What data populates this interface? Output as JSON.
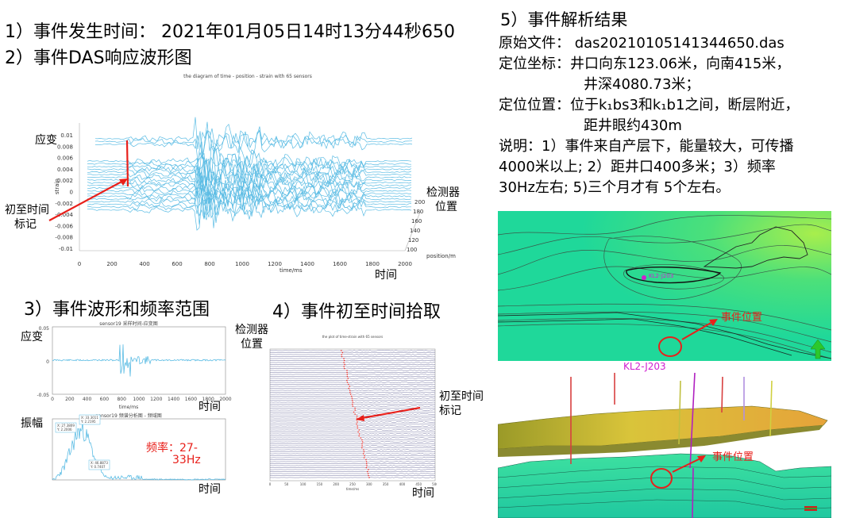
{
  "left": {
    "title1": "1）事件发生时间： 2021年01月05日14时13分44秒650",
    "title2": "2）事件DAS响应波形图",
    "main_plot": {
      "title": "the diagram of time - position - strain with 65 sensors",
      "ylabel": "strain",
      "xlabel": "time/ms",
      "zlabel": "position/m",
      "yticks": [
        "0.01",
        "0.008",
        "0.006",
        "0.004",
        "0.002",
        "0",
        "-0.002",
        "-0.004",
        "-0.006",
        "-0.008",
        "-0.01"
      ],
      "xticks": [
        "0",
        "200",
        "400",
        "600",
        "800",
        "1000",
        "1200",
        "1400",
        "1600",
        "1800",
        "2000"
      ],
      "zticks": [
        "200",
        "180",
        "160",
        "140",
        "120",
        "100"
      ],
      "ann_strain": "应变",
      "ann_first_arrival_1": "初至时间",
      "ann_first_arrival_2": "标记",
      "ann_detector_1": "检测器",
      "ann_detector_2": "位置",
      "ann_time": "时间"
    },
    "title3": "3）事件波形和频率范围",
    "title4": "4）事件初至时间拾取",
    "waveform": {
      "title": "sensor19 采样时间-应变图",
      "ylabel": "应变",
      "xlabel": "time/ms",
      "yticks": [
        "0.05",
        "0",
        "-0.05"
      ],
      "xticks": [
        "0",
        "200",
        "400",
        "600",
        "800",
        "1000",
        "1200",
        "1400",
        "1600",
        "1800",
        "2000"
      ],
      "ann_time": "时间"
    },
    "spectrum": {
      "title": "sensor19 频谱分析图 - 频域图",
      "ylabel": "振幅",
      "xlabel": "f(q) Hz",
      "freq_label_1": "频率：27-",
      "freq_label_2": "33Hz",
      "ann_time": "时间",
      "callouts": [
        "X: 27.3809\nY: 2.2006",
        "X: 33.3011\nY: 2.2195",
        "X: 46.8873\nY: 0.7407"
      ]
    },
    "firstpick": {
      "title": "the plot of time-strain with 65 sensors",
      "ylabel_1": "检测器",
      "ylabel_2": "位置",
      "xlabel": "time/ms",
      "ann_1": "初至时间",
      "ann_2": "标记",
      "ann_time": "时间",
      "xticks": [
        "0",
        "50",
        "100",
        "150",
        "200",
        "250",
        "300",
        "350",
        "400",
        "450",
        "500"
      ]
    }
  },
  "right": {
    "heading": "5）事件解析结果",
    "line1": "原始文件： das20210105141344650.das",
    "line2": "定位坐标：井口向东123.06米，向南415米，",
    "line3": "井深4080.73米；",
    "line4": "定位位置：位于k₁bs3和k₁b1之间，断层附近，",
    "line5": "距井眼约430m",
    "line6": "说明：1）事件来自产层下，能量较大，可传播",
    "line7": "4000米以上; 2）距井口400多米；3）频率",
    "line8": "30Hz左右; 5)三个月才有 5个左右。",
    "map_well": "KL2-J203",
    "map_event": "事件位置",
    "between_label": "KL2-J203",
    "model_event": "事件位置"
  },
  "colors": {
    "wave": "#5bbce4",
    "red": "#e8201b",
    "magenta": "#d020d0",
    "map_green": "#22d890",
    "map_yellowgreen": "#9be84a"
  }
}
